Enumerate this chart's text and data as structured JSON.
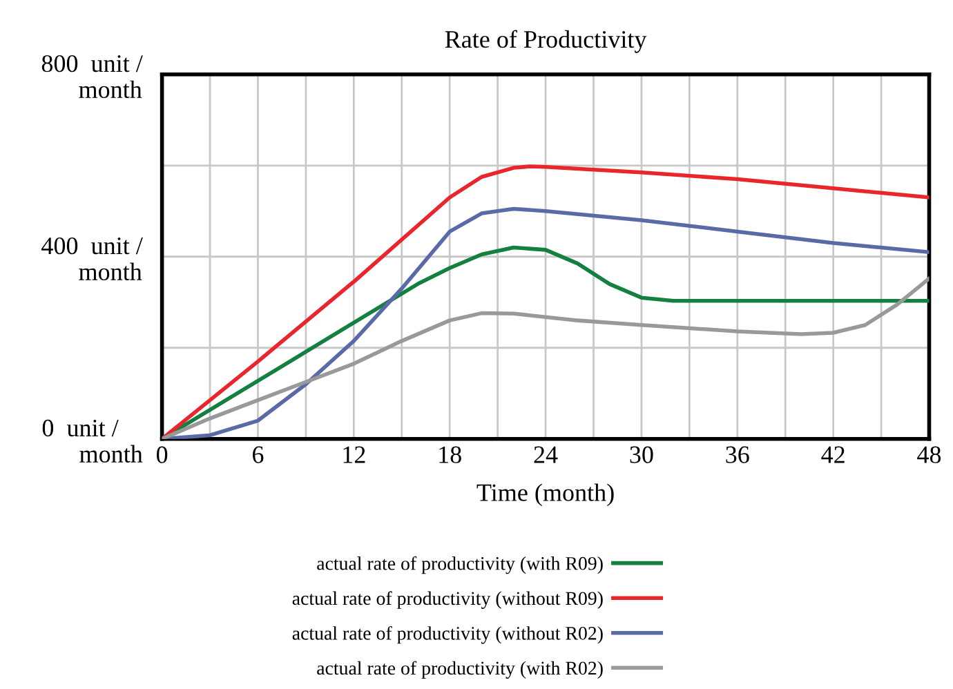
{
  "chart_data": {
    "type": "line",
    "title": "Rate of Productivity",
    "xlabel": "Time (month)",
    "xlim": [
      0,
      48
    ],
    "ylim": [
      0,
      800
    ],
    "xticks": [
      0,
      {
        "value": 3,
        "label": null
      },
      6,
      {
        "value": 9,
        "label": null
      },
      12,
      {
        "value": 15,
        "label": null
      },
      18,
      {
        "value": 21,
        "label": null
      },
      24,
      {
        "value": 27,
        "label": null
      },
      30,
      {
        "value": 33,
        "label": null
      },
      36,
      {
        "value": 39,
        "label": null
      },
      42,
      {
        "value": 45,
        "label": null
      },
      48
    ],
    "yticks": [
      {
        "value": 0,
        "label": "0  unit /\n      month"
      },
      {
        "value": 200,
        "label": null
      },
      {
        "value": 400,
        "label": "400  unit /\n      month"
      },
      {
        "value": 600,
        "label": null
      },
      {
        "value": 800,
        "label": "800  unit /\n      month"
      }
    ],
    "grid": true,
    "legend": "bottom",
    "line_style": "solid",
    "series": [
      {
        "name": "actual rate of productivity (with R09)",
        "color": "#138040",
        "x": [
          0,
          4,
          8,
          12,
          16,
          18,
          20,
          22,
          24,
          26,
          28,
          30,
          32,
          40,
          48
        ],
        "values": [
          0,
          85,
          170,
          255,
          340,
          375,
          405,
          420,
          415,
          385,
          340,
          310,
          303,
          303,
          303
        ]
      },
      {
        "name": "actual rate of productivity (without R09)",
        "color": "#e8262c",
        "x": [
          0,
          6,
          12,
          18,
          20,
          22,
          23,
          24,
          30,
          36,
          42,
          48
        ],
        "values": [
          0,
          170,
          345,
          530,
          575,
          595,
          598,
          597,
          585,
          570,
          550,
          530
        ]
      },
      {
        "name": "actual rate of productivity (without R02)",
        "color": "#5a6aa6",
        "x": [
          0,
          3,
          6,
          9,
          12,
          15,
          18,
          20,
          22,
          24,
          30,
          36,
          42,
          48
        ],
        "values": [
          0,
          8,
          40,
          120,
          215,
          330,
          455,
          495,
          505,
          500,
          480,
          455,
          430,
          410
        ]
      },
      {
        "name": "actual rate of productivity (with R02)",
        "color": "#999999",
        "x": [
          0,
          3,
          6,
          9,
          12,
          15,
          18,
          20,
          22,
          26,
          30,
          36,
          40,
          42,
          44,
          46,
          48
        ],
        "values": [
          0,
          45,
          85,
          125,
          165,
          215,
          260,
          276,
          275,
          260,
          250,
          236,
          230,
          233,
          250,
          295,
          352
        ]
      }
    ]
  }
}
